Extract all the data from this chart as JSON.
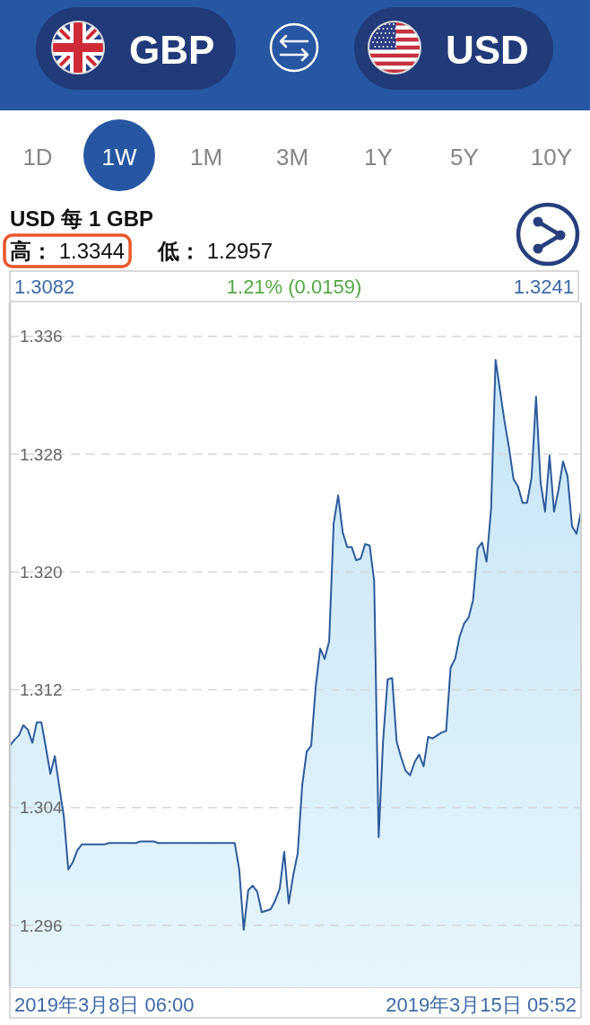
{
  "chart_data": {
    "type": "area",
    "title": "USD 每 1 GBP",
    "annotations": [
      "GBP",
      "USD",
      "1D",
      "1W",
      "1M",
      "3M",
      "1Y",
      "5Y",
      "10Y",
      "高： 1.3344",
      "低： 1.2957",
      "1.3082",
      "1.21% (0.0159)",
      "1.3241",
      "2019年3月8日 06:00",
      "2019年3月15日 05:52"
    ],
    "categories": [
      null,
      null,
      null,
      null,
      null,
      null,
      null,
      null,
      null,
      null,
      null,
      null,
      null,
      null,
      null,
      null,
      null,
      null,
      null,
      null,
      null,
      null,
      null,
      null,
      null,
      null,
      null,
      null,
      null,
      null,
      null,
      null,
      null,
      null,
      null,
      null,
      null,
      null,
      null,
      null,
      null,
      null,
      null,
      null,
      null,
      null,
      null,
      null,
      null,
      null,
      null,
      null,
      null,
      null,
      null,
      null,
      null,
      null,
      null,
      null,
      null,
      null,
      null,
      null,
      null,
      null,
      null,
      null,
      null,
      null,
      null,
      null,
      null,
      null,
      null,
      null,
      null,
      null,
      null,
      null,
      null,
      null,
      null,
      null,
      null,
      null,
      null,
      null,
      null,
      null,
      null,
      null,
      null,
      null,
      null,
      null,
      null,
      null,
      null,
      null,
      null,
      null,
      null,
      null,
      null,
      null,
      null,
      null,
      null,
      null,
      null,
      null,
      null,
      null,
      null,
      null,
      null,
      null,
      null,
      null,
      null,
      null,
      null,
      null,
      null,
      null,
      null,
      null
    ],
    "values": [
      1.3082,
      1.3086,
      1.3089,
      1.3096,
      1.3093,
      1.3084,
      1.3098,
      1.3098,
      1.3081,
      1.3063,
      1.3075,
      1.3054,
      1.3034,
      1.2998,
      1.3003,
      1.3011,
      1.3015,
      1.3015,
      1.3015,
      1.3015,
      1.3015,
      1.3015,
      1.3016,
      1.3016,
      1.3016,
      1.3016,
      1.3016,
      1.3016,
      1.3016,
      1.3017,
      1.3017,
      1.3017,
      1.3017,
      1.3016,
      1.3016,
      1.3016,
      1.3016,
      1.3016,
      1.3016,
      1.3016,
      1.3016,
      1.3016,
      1.3016,
      1.3016,
      1.3016,
      1.3016,
      1.3016,
      1.3016,
      1.3016,
      1.3016,
      1.3016,
      1.2998,
      1.2957,
      1.2984,
      1.2987,
      1.2983,
      1.2969,
      1.297,
      1.2971,
      1.2977,
      1.2985,
      1.301,
      1.2975,
      1.2994,
      1.3009,
      1.3055,
      1.3078,
      1.3082,
      1.3122,
      1.3148,
      1.3141,
      1.3153,
      1.3233,
      1.3252,
      1.3227,
      1.3217,
      1.3217,
      1.3208,
      1.3209,
      1.3219,
      1.3218,
      1.3194,
      1.302,
      1.3086,
      1.3127,
      1.3128,
      1.3085,
      1.3074,
      1.3065,
      1.3062,
      1.3071,
      1.3076,
      1.3068,
      1.3088,
      1.3087,
      1.3089,
      1.3091,
      1.3092,
      1.3135,
      1.3141,
      1.3156,
      1.3165,
      1.3169,
      1.3181,
      1.3216,
      1.322,
      1.3207,
      1.3243,
      1.3344,
      1.3323,
      1.3302,
      1.3284,
      1.3263,
      1.3258,
      1.3247,
      1.3247,
      1.3264,
      1.3319,
      1.3261,
      1.3241,
      1.3279,
      1.3241,
      1.3256,
      1.3275,
      1.3265,
      1.3231,
      1.3226,
      1.3241
    ],
    "color": "#2d5b9b",
    "ylim": [
      1.2918,
      1.3383
    ],
    "yticks": [
      1.296,
      1.304,
      1.312,
      {
        "value": 1.32,
        "label": "1.320"
      },
      1.328,
      1.336
    ],
    "tick_labels": "y",
    "grid": "y"
  }
}
